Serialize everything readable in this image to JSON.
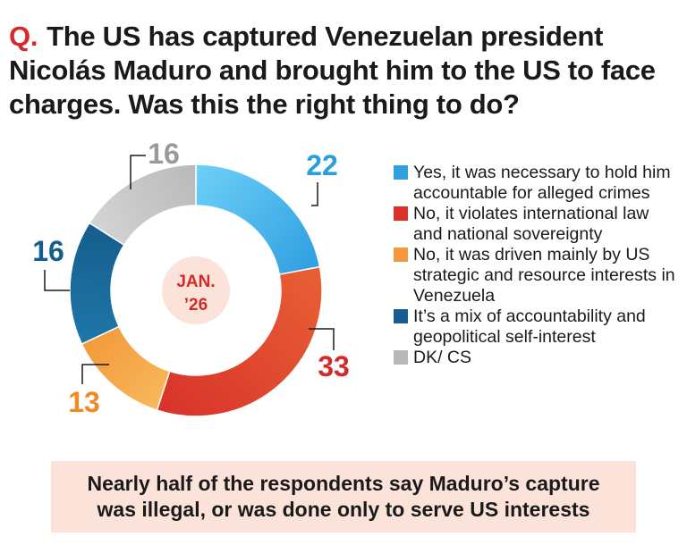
{
  "question": {
    "prefix": "Q.",
    "text": "The US has captured Venezuelan president Nicolás Maduro and brought him to the US to face charges. Was this the right thing to do?"
  },
  "chart_data": {
    "type": "pie",
    "style": "donut",
    "center_label": [
      "JAN.",
      "’26"
    ],
    "categories": [
      "Yes, it was necessary to hold him accountable for alleged crimes",
      "No, it violates international law and national sovereignty",
      "No, it was driven mainly by US strategic and resource interests in Venezuela",
      "It’s a mix of accountability and geopolitical self-interest",
      "DK/ CS"
    ],
    "values": [
      22,
      33,
      13,
      16,
      16
    ],
    "value_labels": [
      "22",
      "33",
      "13",
      "16",
      "16"
    ],
    "colors": [
      "#2f9fe0",
      "#d8322a",
      "#f29a3a",
      "#155d8c",
      "#b9b9b9"
    ],
    "gradient_light": [
      "#6fd0f7",
      "#e86035",
      "#f8b85c",
      "#1f77a9",
      "#d4d4d4"
    ],
    "label_colors": [
      "#2a9fd9",
      "#d42a2a",
      "#f08a24",
      "#155d8c",
      "#9a9a9a"
    ]
  },
  "legend": {
    "items": [
      {
        "label": "Yes, it was necessary to hold him accountable for alleged crimes",
        "color": "#2f9fe0"
      },
      {
        "label": "No, it violates international law and national sovereignty",
        "color": "#d8322a"
      },
      {
        "label": "No, it was driven mainly by US strategic and resource interests in Venezuela",
        "color": "#f29a3a"
      },
      {
        "label": "It’s a mix of accountability and geopolitical self-interest",
        "color": "#155d8c"
      },
      {
        "label": "DK/ CS",
        "color": "#b9b9b9"
      }
    ]
  },
  "callout": {
    "text": "Nearly half of the respondents say Maduro’s capture was illegal, or was done only to serve US interests"
  }
}
